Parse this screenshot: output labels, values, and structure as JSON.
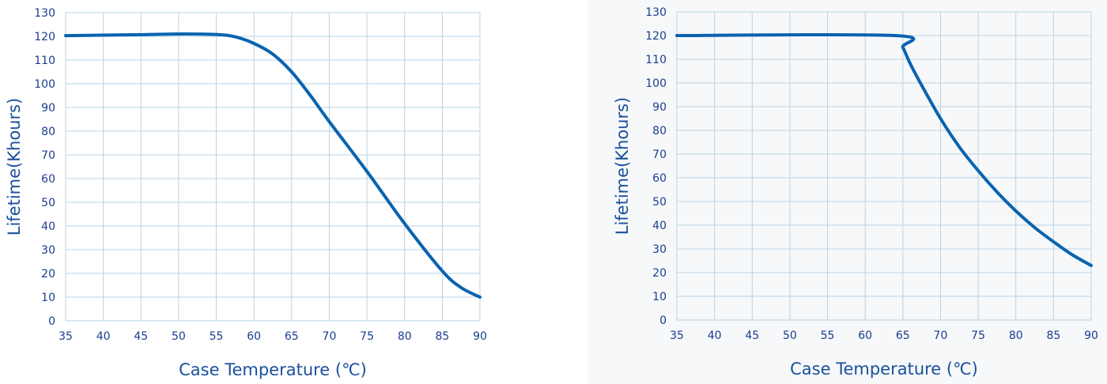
{
  "chart_data": [
    {
      "type": "line",
      "title": "",
      "xlabel": "Case Temperature (℃)",
      "ylabel": "Lifetime(Khours)",
      "xlim": [
        35,
        90
      ],
      "ylim": [
        0,
        130
      ],
      "xticks": [
        35,
        40,
        45,
        50,
        55,
        60,
        65,
        70,
        75,
        80,
        85,
        90
      ],
      "yticks": [
        0,
        10,
        20,
        30,
        40,
        50,
        60,
        70,
        80,
        90,
        100,
        110,
        120,
        130
      ],
      "grid": true,
      "series": [
        {
          "color": "#0a63b0",
          "smooth": true,
          "x": [
            35,
            40,
            45,
            50,
            55,
            57.5,
            60,
            62.5,
            65,
            67.5,
            70,
            75,
            80,
            85,
            87.5,
            90
          ],
          "y": [
            120.3,
            120.5,
            120.7,
            121,
            120.8,
            119.8,
            117,
            112.5,
            105,
            95,
            84,
            63,
            41,
            21,
            14,
            10
          ]
        }
      ]
    },
    {
      "type": "line",
      "title": "",
      "xlabel": "Case Temperature (℃)",
      "ylabel": "Lifetime(Khours)",
      "xlim": [
        35,
        90
      ],
      "ylim": [
        0,
        130
      ],
      "xticks": [
        35,
        40,
        45,
        50,
        55,
        60,
        65,
        70,
        75,
        80,
        85,
        90
      ],
      "yticks": [
        0,
        10,
        20,
        30,
        40,
        50,
        60,
        70,
        80,
        90,
        100,
        110,
        120,
        130
      ],
      "grid": true,
      "series": [
        {
          "color": "#0a63b0",
          "smooth": true,
          "x": [
            35,
            64,
            65,
            66,
            67.5,
            70,
            72.5,
            75,
            77.5,
            80,
            82.5,
            85,
            87.5,
            90
          ],
          "y": [
            120,
            120,
            115,
            108,
            99,
            85,
            73,
            63,
            54,
            46,
            39,
            33,
            27.5,
            23
          ]
        }
      ]
    }
  ]
}
